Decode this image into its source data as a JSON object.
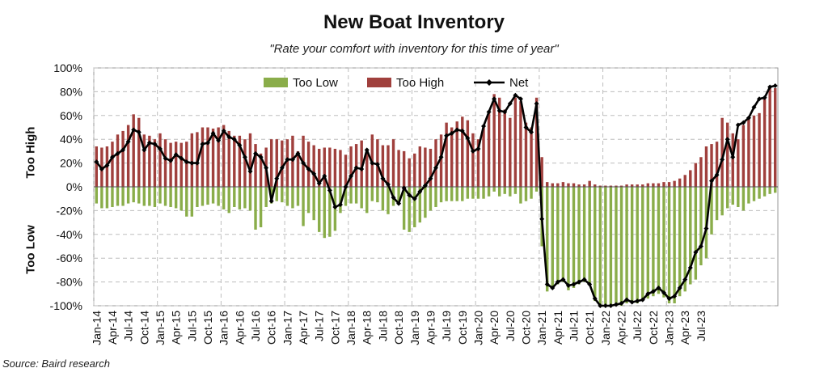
{
  "chart_data": {
    "type": "bar+line",
    "title": "New Boat Inventory",
    "subtitle": "\"Rate your comfort with inventory for this time of year\"",
    "source": "Source: Baird research",
    "ylabel_top": "Too High",
    "ylabel_bottom": "Too Low",
    "ylim": [
      -100,
      100
    ],
    "yticks": [
      "100%",
      "80%",
      "60%",
      "40%",
      "20%",
      "0%",
      "-20%",
      "-40%",
      "-60%",
      "-80%",
      "-100%"
    ],
    "legend": {
      "too_low": "Too Low",
      "too_high": "Too High",
      "net": "Net"
    },
    "colors": {
      "too_low": "#8aad4a",
      "too_high": "#a0403d",
      "net": "#000000"
    },
    "x_tick_labels": [
      "Jan-14",
      "Apr-14",
      "Jul-14",
      "Oct-14",
      "Jan-15",
      "Apr-15",
      "Jul-15",
      "Oct-15",
      "Jan-16",
      "Apr-16",
      "Jul-16",
      "Oct-16",
      "Jan-17",
      "Apr-17",
      "Jul-17",
      "Oct-17",
      "Jan-18",
      "Apr-18",
      "Jul-18",
      "Oct-18",
      "Jan-19",
      "Apr-19",
      "Jul-19",
      "Oct-19",
      "Jan-20",
      "Apr-20",
      "Jul-20",
      "Oct-20",
      "Jan-21",
      "Apr-21",
      "Jul-21",
      "Oct-21",
      "Jan-22",
      "Apr-22",
      "Jul-22",
      "Oct-22",
      "Jan-23",
      "Apr-23",
      "Jul-23"
    ],
    "series": [
      {
        "name": "Too High",
        "values": [
          34,
          33,
          34,
          38,
          44,
          47,
          52,
          61,
          58,
          44,
          43,
          40,
          45,
          40,
          37,
          38,
          37,
          38,
          45,
          46,
          50,
          50,
          49,
          50,
          52,
          47,
          43,
          43,
          40,
          45,
          36,
          28,
          33,
          40,
          40,
          39,
          40,
          43,
          30,
          43,
          38,
          35,
          32,
          33,
          33,
          32,
          31,
          27,
          34,
          36,
          39,
          32,
          44,
          40,
          35,
          35,
          40,
          31,
          30,
          24,
          28,
          34,
          33,
          32,
          40,
          44,
          54,
          50,
          55,
          59,
          56,
          45,
          40,
          50,
          62,
          78,
          75,
          65,
          58,
          75,
          72,
          54,
          50,
          75,
          25,
          4,
          3,
          3,
          4,
          3,
          3,
          2,
          2,
          5,
          2,
          1,
          1,
          1,
          1,
          1,
          2,
          2,
          2,
          2,
          3,
          3,
          3,
          4,
          4,
          5,
          7,
          10,
          14,
          20,
          25,
          34,
          36,
          38,
          58,
          54,
          45,
          40,
          52,
          57,
          60,
          62,
          74,
          84,
          83
        ]
      },
      {
        "name": "Too Low",
        "values": [
          -14,
          -18,
          -18,
          -17,
          -16,
          -16,
          -14,
          -13,
          -14,
          -16,
          -16,
          -17,
          -14,
          -16,
          -17,
          -18,
          -20,
          -25,
          -25,
          -17,
          -16,
          -15,
          -14,
          -16,
          -19,
          -22,
          -17,
          -19,
          -18,
          -20,
          -36,
          -34,
          -17,
          -14,
          -12,
          -13,
          -16,
          -18,
          -16,
          -33,
          -22,
          -28,
          -38,
          -43,
          -42,
          -37,
          -22,
          -16,
          -14,
          -14,
          -18,
          -22,
          -12,
          -13,
          -20,
          -23,
          -16,
          -12,
          -36,
          -38,
          -34,
          -30,
          -26,
          -20,
          -17,
          -13,
          -12,
          -12,
          -12,
          -12,
          -10,
          -10,
          -10,
          -10,
          -8,
          -4,
          -8,
          -6,
          -8,
          -6,
          -14,
          -12,
          -10,
          -4,
          -50,
          -88,
          -84,
          -82,
          -80,
          -87,
          -85,
          -82,
          -80,
          -82,
          -96,
          -100,
          -100,
          -100,
          -100,
          -100,
          -98,
          -96,
          -98,
          -96,
          -94,
          -92,
          -90,
          -93,
          -98,
          -98,
          -92,
          -88,
          -82,
          -78,
          -66,
          -60,
          -40,
          -28,
          -24,
          -18,
          -15,
          -17,
          -20,
          -14,
          -12,
          -10,
          -8,
          -6,
          -5
        ]
      },
      {
        "name": "Net",
        "values": [
          21,
          15,
          18,
          25,
          28,
          31,
          38,
          48,
          46,
          31,
          37,
          36,
          32,
          24,
          22,
          27,
          24,
          21,
          20,
          20,
          36,
          37,
          45,
          39,
          47,
          42,
          40,
          35,
          25,
          13,
          28,
          25,
          16,
          -12,
          7,
          16,
          23,
          23,
          28,
          20,
          15,
          11,
          3,
          9,
          -3,
          -17,
          -15,
          0,
          9,
          16,
          15,
          31,
          20,
          19,
          7,
          2,
          -9,
          -14,
          -1,
          -7,
          -10,
          -4,
          1,
          7,
          16,
          25,
          43,
          45,
          48,
          47,
          41,
          30,
          32,
          51,
          63,
          74,
          64,
          63,
          70,
          77,
          74,
          50,
          46,
          70,
          -27,
          -82,
          -85,
          -80,
          -78,
          -83,
          -82,
          -80,
          -78,
          -82,
          -94,
          -100,
          -100,
          -100,
          -99,
          -98,
          -95,
          -97,
          -96,
          -95,
          -90,
          -88,
          -85,
          -89,
          -94,
          -92,
          -85,
          -78,
          -68,
          -55,
          -50,
          -35,
          5,
          10,
          23,
          40,
          25,
          52,
          54,
          58,
          67,
          74,
          75,
          84,
          85
        ]
      }
    ]
  }
}
